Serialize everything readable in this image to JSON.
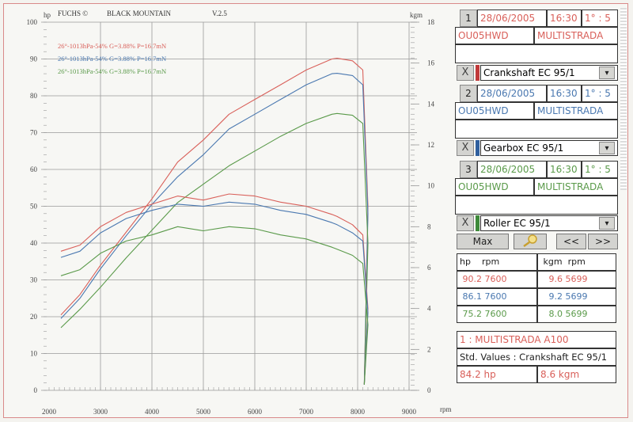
{
  "header": {
    "brand": "FUCHS ©",
    "model": "BLACK MOUNTAIN",
    "version": "V.2.5"
  },
  "axes": {
    "left_unit": "hp",
    "right_unit": "kgm",
    "x_unit": "rpm",
    "left_ticks": [
      "100",
      "90",
      "80",
      "70",
      "60",
      "50",
      "40",
      "30",
      "20",
      "10",
      "0"
    ],
    "right_ticks": [
      "18",
      "16",
      "14",
      "12",
      "10",
      "8",
      "6",
      "4",
      "2",
      "0"
    ],
    "x_ticks": [
      "2000",
      "3000",
      "4000",
      "5000",
      "6000",
      "7000",
      "8000",
      "9000"
    ]
  },
  "legend": [
    {
      "text": "26°-1013hPa-54% G=3.88% P=16.7mN",
      "color": "#d9605a"
    },
    {
      "text": "26°-1013hPa-54% G=3.88% P=16.7mN",
      "color": "#4a78b0"
    },
    {
      "text": "26°-1013hPa-54% G=3.88% P=16.7mN",
      "color": "#5a9a4a"
    }
  ],
  "runs": [
    {
      "num": "1",
      "date": "28/06/2005",
      "time": "16:30",
      "gear": "1° : 5",
      "plate": "OU05HWD",
      "model": "MULTISTRADA",
      "measure": "Crankshaft EC 95/1",
      "color": "#d9605a",
      "x_label": "X"
    },
    {
      "num": "2",
      "date": "28/06/2005",
      "time": "16:30",
      "gear": "1° : 5",
      "plate": "OU05HWD",
      "model": "MULTISTRADA",
      "measure": "Gearbox EC 95/1",
      "color": "#4a78b0",
      "x_label": "X"
    },
    {
      "num": "3",
      "date": "28/06/2005",
      "time": "16:30",
      "gear": "1° : 5",
      "plate": "OU05HWD",
      "model": "MULTISTRADA",
      "measure": "Roller EC 95/1",
      "color": "#5a9a4a",
      "x_label": "X"
    }
  ],
  "controls": {
    "max_label": "Max",
    "zoom_icon": "magnifier-icon",
    "prev_label": "<<",
    "next_label": ">>",
    "dropdown_icon": "▾"
  },
  "peaks": {
    "headers": {
      "hp": "hp",
      "rpm1": "rpm",
      "kgm": "kgm",
      "rpm2": "rpm"
    },
    "rows": [
      {
        "hp": "90.2",
        "hp_rpm": "7600",
        "kgm": "9.6",
        "kgm_rpm": "5699",
        "color": "#d9605a"
      },
      {
        "hp": "86.1",
        "hp_rpm": "7600",
        "kgm": "9.2",
        "kgm_rpm": "5699",
        "color": "#4a78b0"
      },
      {
        "hp": "75.2",
        "hp_rpm": "7600",
        "kgm": "8.0",
        "kgm_rpm": "5699",
        "color": "#5a9a4a"
      }
    ]
  },
  "summary": {
    "title": "1 : MULTISTRADA A100",
    "std_values": "Std. Values : Crankshaft EC 95/1",
    "hp_value": "84.2  hp",
    "kgm_value": "8.6  kgm"
  },
  "chart_data": {
    "type": "line",
    "title": "FUCHS © BLACK MOUNTAIN V.2.5",
    "xlabel": "rpm",
    "ylabel": "hp",
    "y2label": "kgm",
    "xlim": [
      2000,
      9000
    ],
    "ylim": [
      0,
      100
    ],
    "y2lim": [
      0,
      18
    ],
    "grid": true,
    "x": [
      2230,
      2600,
      3000,
      3500,
      4000,
      4500,
      5000,
      5500,
      6000,
      6500,
      7000,
      7500,
      7600,
      7900,
      8100,
      8200
    ],
    "series": [
      {
        "name": "Crankshaft EC 95/1 power (hp)",
        "axis": "left",
        "color": "#d9605a",
        "values": [
          20.5,
          26,
          34,
          43,
          52,
          62,
          68,
          75,
          79,
          83,
          87,
          90,
          90.2,
          89.5,
          87,
          50
        ]
      },
      {
        "name": "Gearbox EC 95/1 power (hp)",
        "axis": "left",
        "color": "#4a78b0",
        "values": [
          19.5,
          25,
          33,
          42,
          50.5,
          58,
          64,
          71,
          75,
          79,
          83,
          86,
          86.1,
          85.5,
          83,
          48
        ]
      },
      {
        "name": "Roller EC 95/1 power (hp)",
        "axis": "left",
        "color": "#5a9a4a",
        "values": [
          17,
          22,
          28,
          36,
          43.5,
          51,
          56,
          61,
          65,
          69,
          72.5,
          75,
          75.2,
          74.7,
          72.5,
          40
        ]
      },
      {
        "name": "Crankshaft EC 95/1 torque (kgm)",
        "axis": "right",
        "color": "#d9605a",
        "values": [
          6.8,
          7.1,
          8.0,
          8.7,
          9.1,
          9.5,
          9.3,
          9.6,
          9.5,
          9.2,
          9.0,
          8.6,
          8.5,
          8.1,
          7.6,
          4.0
        ]
      },
      {
        "name": "Gearbox EC 95/1 torque (kgm)",
        "axis": "right",
        "color": "#4a78b0",
        "values": [
          6.5,
          6.8,
          7.7,
          8.4,
          8.8,
          9.1,
          9.0,
          9.2,
          9.1,
          8.8,
          8.6,
          8.2,
          8.1,
          7.7,
          7.3,
          3.8
        ]
      },
      {
        "name": "Roller EC 95/1 torque (kgm)",
        "axis": "right",
        "color": "#5a9a4a",
        "values": [
          5.6,
          5.9,
          6.7,
          7.3,
          7.6,
          8.0,
          7.8,
          8.0,
          7.9,
          7.6,
          7.4,
          7.0,
          6.9,
          6.6,
          6.2,
          3.2
        ]
      }
    ],
    "peaks": [
      {
        "series": "Crankshaft EC 95/1",
        "hp": 90.2,
        "hp_rpm": 7600,
        "kgm": 9.6,
        "kgm_rpm": 5699
      },
      {
        "series": "Gearbox EC 95/1",
        "hp": 86.1,
        "hp_rpm": 7600,
        "kgm": 9.2,
        "kgm_rpm": 5699
      },
      {
        "series": "Roller EC 95/1",
        "hp": 75.2,
        "hp_rpm": 7600,
        "kgm": 8.0,
        "kgm_rpm": 5699
      }
    ],
    "legend_position": "top-left"
  }
}
